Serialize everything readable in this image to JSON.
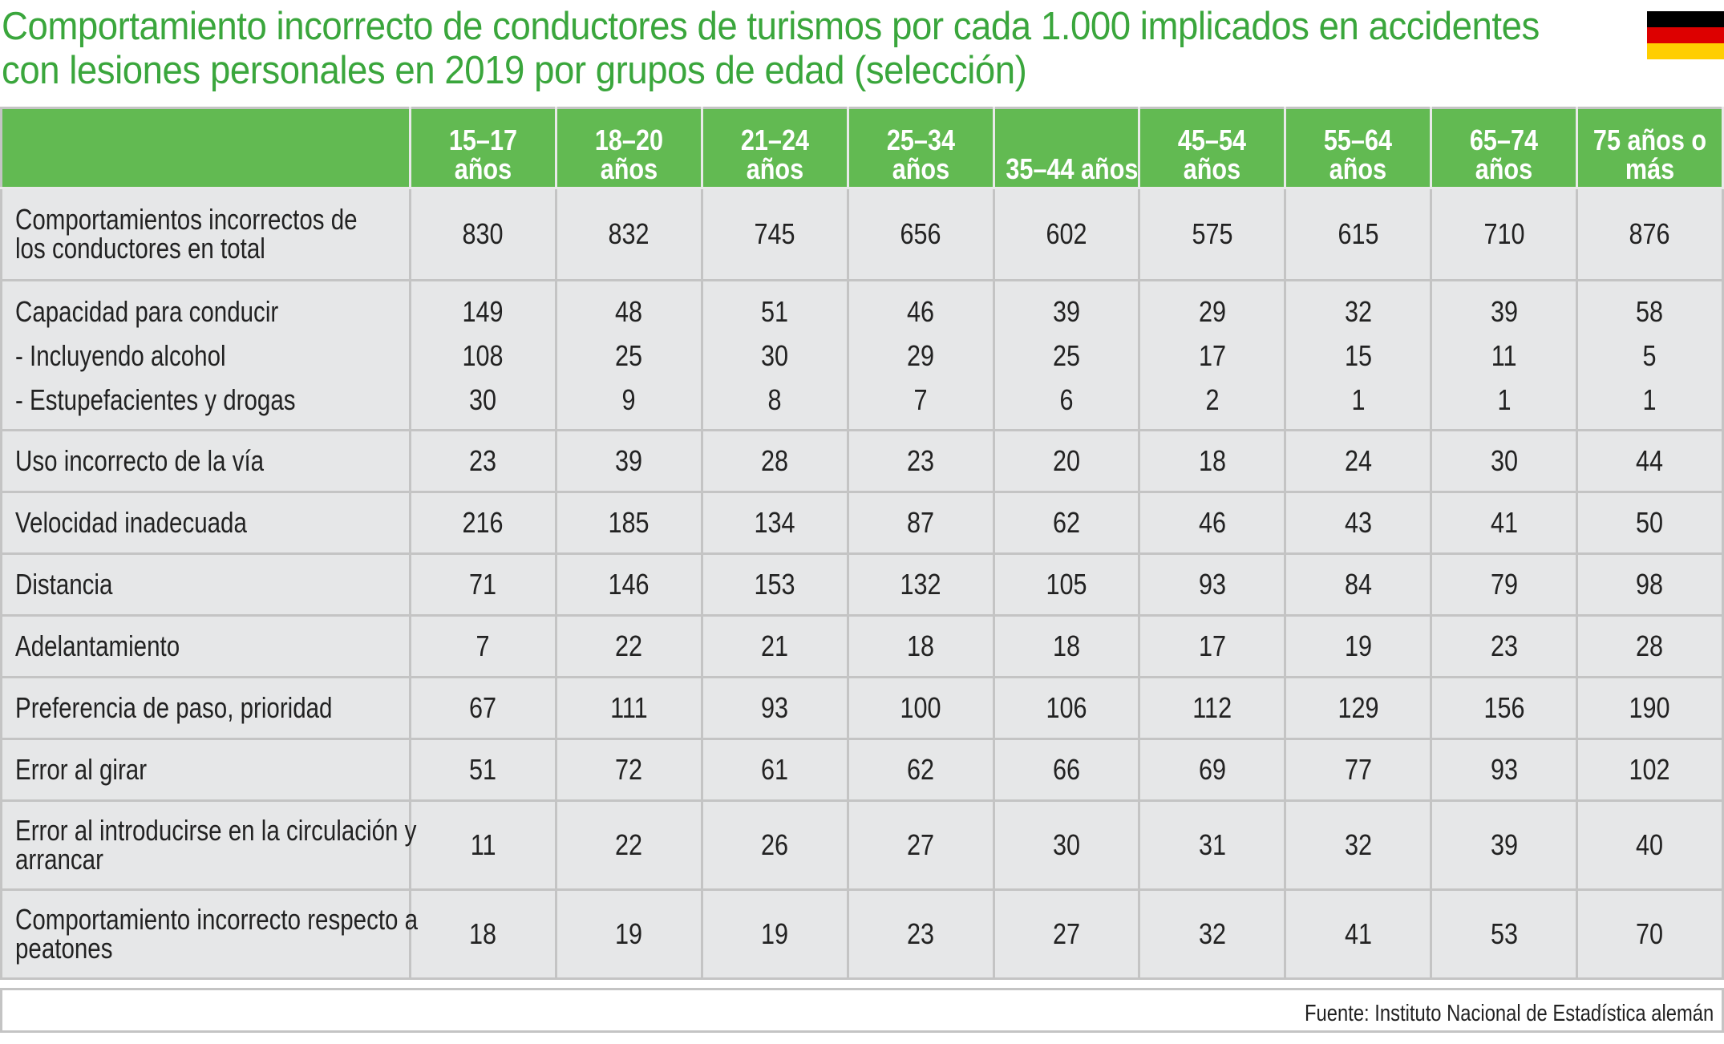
{
  "title": {
    "line1": "Comportamiento incorrecto de conductores de turismos por cada 1.000 implicados en accidentes",
    "line2": "con lesiones personales en 2019 por grupos de edad (selección)"
  },
  "flag": {
    "name": "germany-flag",
    "colors": [
      "#000000",
      "#dd0000",
      "#ffce00"
    ]
  },
  "colors": {
    "header_green": "#62ba52",
    "title_green": "#3aa63c",
    "cell_bg": "#e6e7e8"
  },
  "chart_data": {
    "type": "table",
    "title": "Comportamiento incorrecto de conductores de turismos por cada 1.000 implicados en accidentes con lesiones personales en 2019 por grupos de edad (selección)",
    "columns": [
      [
        "15–17",
        "años"
      ],
      [
        "18–20",
        "años"
      ],
      [
        "21–24",
        "años"
      ],
      [
        "25–34",
        "años"
      ],
      [
        "",
        "35–44 años"
      ],
      [
        "45–54",
        "años"
      ],
      [
        "55–64",
        "años"
      ],
      [
        "65–74",
        "años"
      ],
      [
        "75 años o",
        "más"
      ]
    ],
    "rows": [
      {
        "label": [
          "Comportamientos incorrectos de",
          "los conductores en total"
        ],
        "values": [
          830,
          832,
          745,
          656,
          602,
          575,
          615,
          710,
          876
        ]
      },
      {
        "label": [
          "Capacidad para conducir"
        ],
        "values": [
          149,
          48,
          51,
          46,
          39,
          29,
          32,
          39,
          58
        ]
      },
      {
        "label": [
          "- Incluyendo alcohol"
        ],
        "values": [
          108,
          25,
          30,
          29,
          25,
          17,
          15,
          11,
          5
        ]
      },
      {
        "label": [
          "- Estupefacientes y drogas"
        ],
        "values": [
          30,
          9,
          8,
          7,
          6,
          2,
          1,
          1,
          1
        ]
      },
      {
        "label": [
          "Uso incorrecto de la vía"
        ],
        "values": [
          23,
          39,
          28,
          23,
          20,
          18,
          24,
          30,
          44
        ]
      },
      {
        "label": [
          "Velocidad inadecuada"
        ],
        "values": [
          216,
          185,
          134,
          87,
          62,
          46,
          43,
          41,
          50
        ]
      },
      {
        "label": [
          "Distancia"
        ],
        "values": [
          71,
          146,
          153,
          132,
          105,
          93,
          84,
          79,
          98
        ]
      },
      {
        "label": [
          "Adelantamiento"
        ],
        "values": [
          7,
          22,
          21,
          18,
          18,
          17,
          19,
          23,
          28
        ]
      },
      {
        "label": [
          "Preferencia de paso, prioridad"
        ],
        "values": [
          67,
          111,
          93,
          100,
          106,
          112,
          129,
          156,
          190
        ]
      },
      {
        "label": [
          "Error al girar"
        ],
        "values": [
          51,
          72,
          61,
          62,
          66,
          69,
          77,
          93,
          102
        ]
      },
      {
        "label": [
          "Error al introducirse en la circulación y",
          "arrancar"
        ],
        "values": [
          11,
          22,
          26,
          27,
          30,
          31,
          32,
          39,
          40
        ]
      },
      {
        "label": [
          "Comportamiento incorrecto respecto a",
          "peatones"
        ],
        "values": [
          18,
          19,
          19,
          23,
          27,
          32,
          41,
          53,
          70
        ]
      }
    ],
    "source": "Fuente: Instituto Nacional de Estadística alemán"
  }
}
